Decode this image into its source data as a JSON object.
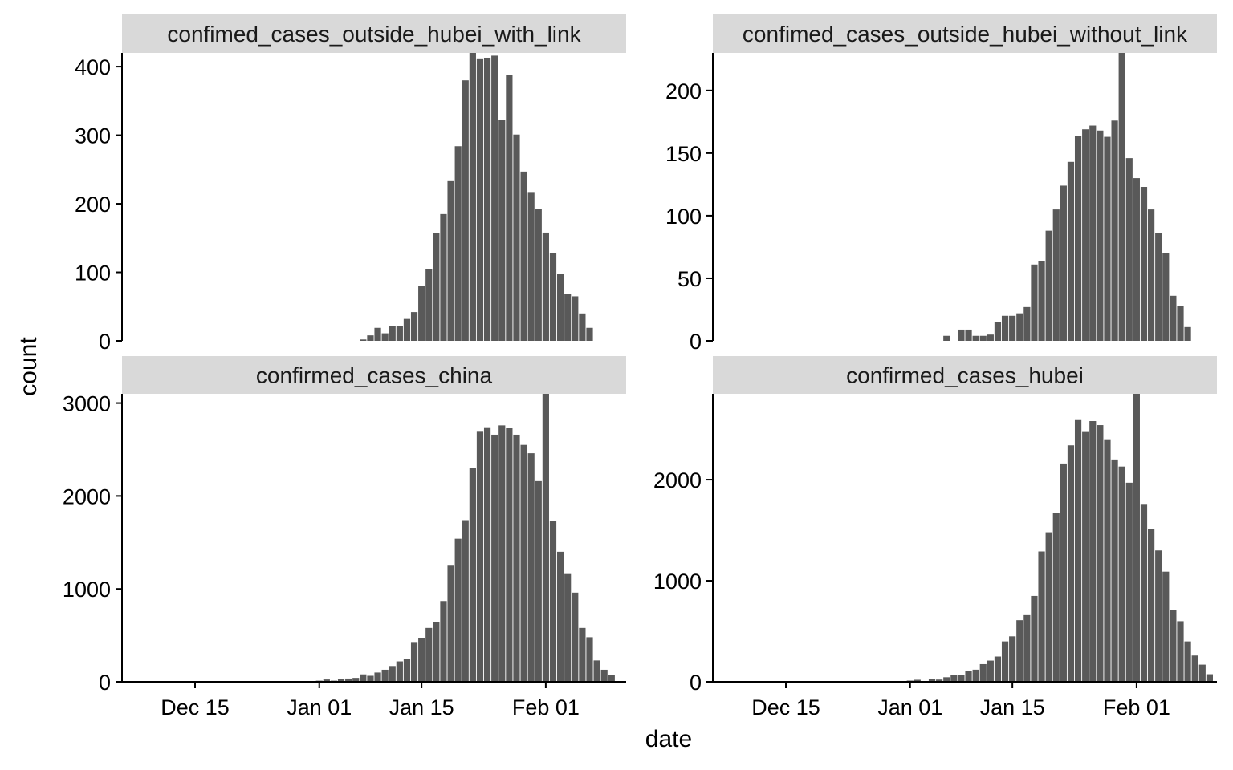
{
  "chart_data": {
    "type": "bar",
    "layout": "facet-grid 2x2",
    "xlabel": "date",
    "ylabel": "count",
    "x_tick_labels": [
      "Dec 15",
      "Jan 01",
      "Jan 15",
      "Feb 01"
    ],
    "x_tick_dates": [
      "2019-12-15",
      "2020-01-01",
      "2020-01-15",
      "2020-02-01"
    ],
    "xlim": [
      "2019-12-05",
      "2020-02-12"
    ],
    "bar_color": "#595959",
    "strip_color": "#d9d9d9",
    "grid": false,
    "panels": [
      {
        "title": "confimed_cases_outside_hubei_with_link",
        "ylim": [
          0,
          420
        ],
        "y_ticks": [
          0,
          100,
          200,
          300,
          400
        ],
        "x": [
          "2020-01-07",
          "2020-01-08",
          "2020-01-09",
          "2020-01-10",
          "2020-01-11",
          "2020-01-12",
          "2020-01-13",
          "2020-01-14",
          "2020-01-15",
          "2020-01-16",
          "2020-01-17",
          "2020-01-18",
          "2020-01-19",
          "2020-01-20",
          "2020-01-21",
          "2020-01-22",
          "2020-01-23",
          "2020-01-24",
          "2020-01-25",
          "2020-01-26",
          "2020-01-27",
          "2020-01-28",
          "2020-01-29",
          "2020-01-30",
          "2020-01-31",
          "2020-02-01",
          "2020-02-02",
          "2020-02-03",
          "2020-02-04",
          "2020-02-05",
          "2020-02-06",
          "2020-02-07",
          "2020-02-08"
        ],
        "values": [
          2,
          8,
          19,
          11,
          22,
          22,
          32,
          42,
          80,
          105,
          157,
          185,
          233,
          284,
          380,
          425,
          412,
          413,
          416,
          322,
          388,
          301,
          247,
          216,
          192,
          158,
          128,
          98,
          68,
          65,
          40,
          19,
          0
        ]
      },
      {
        "title": "confimed_cases_outside_hubei_without_link",
        "ylim": [
          0,
          230
        ],
        "y_ticks": [
          0,
          50,
          100,
          150,
          200
        ],
        "x": [
          "2020-01-06",
          "2020-01-08",
          "2020-01-09",
          "2020-01-10",
          "2020-01-11",
          "2020-01-12",
          "2020-01-13",
          "2020-01-14",
          "2020-01-15",
          "2020-01-16",
          "2020-01-17",
          "2020-01-18",
          "2020-01-19",
          "2020-01-20",
          "2020-01-21",
          "2020-01-22",
          "2020-01-23",
          "2020-01-24",
          "2020-01-25",
          "2020-01-26",
          "2020-01-27",
          "2020-01-28",
          "2020-01-29",
          "2020-01-30",
          "2020-01-31",
          "2020-02-01",
          "2020-02-02",
          "2020-02-03",
          "2020-02-04",
          "2020-02-05",
          "2020-02-06",
          "2020-02-07",
          "2020-02-08",
          "2020-02-09"
        ],
        "values": [
          4,
          9,
          9,
          4,
          4,
          5,
          15,
          20,
          20,
          22,
          27,
          61,
          64,
          88,
          105,
          124,
          143,
          164,
          169,
          172,
          168,
          163,
          176,
          234,
          146,
          130,
          123,
          105,
          86,
          70,
          36,
          28,
          11,
          0
        ]
      },
      {
        "title": "confirmed_cases_china",
        "ylim": [
          0,
          3100
        ],
        "y_ticks": [
          0,
          1000,
          2000,
          3000
        ],
        "x": [
          "2020-01-01",
          "2020-01-02",
          "2020-01-03",
          "2020-01-04",
          "2020-01-05",
          "2020-01-06",
          "2020-01-07",
          "2020-01-08",
          "2020-01-09",
          "2020-01-10",
          "2020-01-11",
          "2020-01-12",
          "2020-01-13",
          "2020-01-14",
          "2020-01-15",
          "2020-01-16",
          "2020-01-17",
          "2020-01-18",
          "2020-01-19",
          "2020-01-20",
          "2020-01-21",
          "2020-01-22",
          "2020-01-23",
          "2020-01-24",
          "2020-01-25",
          "2020-01-26",
          "2020-01-27",
          "2020-01-28",
          "2020-01-29",
          "2020-01-30",
          "2020-01-31",
          "2020-02-01",
          "2020-02-02",
          "2020-02-03",
          "2020-02-04",
          "2020-02-05",
          "2020-02-06",
          "2020-02-07",
          "2020-02-08",
          "2020-02-09",
          "2020-02-10",
          "2020-02-11"
        ],
        "values": [
          12,
          25,
          12,
          33,
          35,
          42,
          80,
          65,
          100,
          130,
          170,
          220,
          250,
          420,
          470,
          580,
          640,
          870,
          1250,
          1540,
          1740,
          2300,
          2700,
          2740,
          2660,
          2760,
          2730,
          2660,
          2550,
          2460,
          2160,
          3150,
          1730,
          1400,
          1160,
          960,
          580,
          480,
          230,
          130,
          70,
          0
        ]
      },
      {
        "title": "confirmed_cases_hubei",
        "ylim": [
          0,
          2850
        ],
        "y_ticks": [
          0,
          1000,
          2000
        ],
        "x": [
          "2020-01-01",
          "2020-01-02",
          "2020-01-03",
          "2020-01-04",
          "2020-01-05",
          "2020-01-06",
          "2020-01-07",
          "2020-01-08",
          "2020-01-09",
          "2020-01-10",
          "2020-01-11",
          "2020-01-12",
          "2020-01-13",
          "2020-01-14",
          "2020-01-15",
          "2020-01-16",
          "2020-01-17",
          "2020-01-18",
          "2020-01-19",
          "2020-01-20",
          "2020-01-21",
          "2020-01-22",
          "2020-01-23",
          "2020-01-24",
          "2020-01-25",
          "2020-01-26",
          "2020-01-27",
          "2020-01-28",
          "2020-01-29",
          "2020-01-30",
          "2020-01-31",
          "2020-02-01",
          "2020-02-02",
          "2020-02-03",
          "2020-02-04",
          "2020-02-05",
          "2020-02-06",
          "2020-02-07",
          "2020-02-08",
          "2020-02-09",
          "2020-02-10",
          "2020-02-11"
        ],
        "values": [
          12,
          20,
          8,
          30,
          22,
          45,
          65,
          70,
          105,
          120,
          175,
          210,
          250,
          400,
          450,
          610,
          660,
          850,
          1290,
          1480,
          1670,
          2160,
          2340,
          2590,
          2480,
          2580,
          2540,
          2400,
          2200,
          2130,
          1970,
          2850,
          1760,
          1510,
          1300,
          1090,
          710,
          600,
          400,
          260,
          170,
          75
        ]
      }
    ]
  }
}
